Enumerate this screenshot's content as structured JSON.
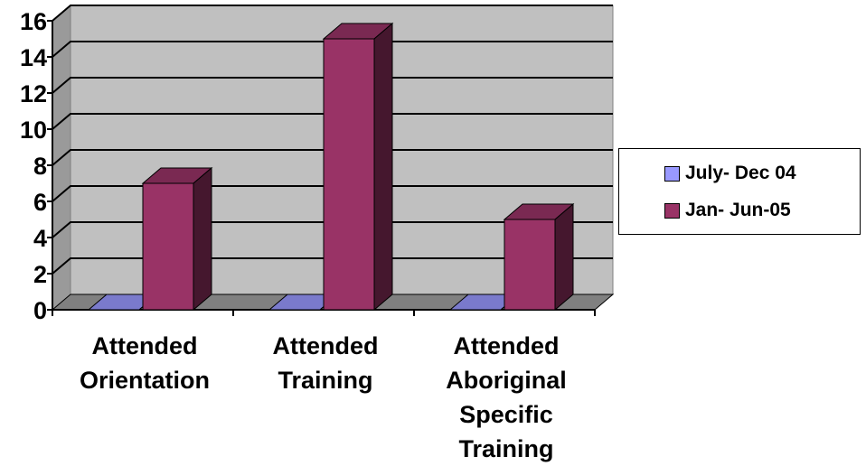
{
  "chart_data": {
    "type": "bar",
    "categories": [
      [
        "Attended",
        "Orientation"
      ],
      [
        "Attended",
        "Training"
      ],
      [
        "Attended",
        "Aboriginal",
        "Specific",
        "Training"
      ]
    ],
    "series": [
      {
        "name": "July- Dec 04",
        "values": [
          0,
          0,
          0
        ],
        "color": "#9999ff"
      },
      {
        "name": "Jan- Jun-05",
        "values": [
          7,
          15,
          5
        ],
        "color": "#993366"
      }
    ],
    "yticks": [
      "0",
      "2",
      "4",
      "6",
      "8",
      "10",
      "12",
      "14",
      "16"
    ],
    "ylim": [
      0,
      16
    ],
    "grid": true,
    "legend_position": "right",
    "style": "3d-column",
    "wall_color": "#c0c0c0"
  }
}
